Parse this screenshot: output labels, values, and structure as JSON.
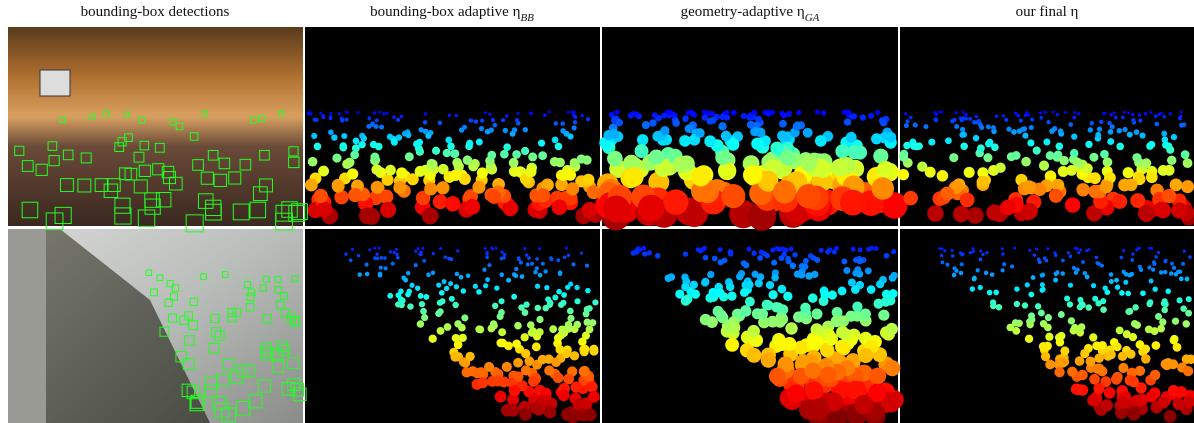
{
  "columns": [
    {
      "text": "bounding-box detections"
    },
    {
      "text": "bounding-box adaptive η",
      "sub": "BB"
    },
    {
      "text": "geometry-adaptive η",
      "sub": "GA"
    },
    {
      "text": "our final η"
    }
  ]
}
